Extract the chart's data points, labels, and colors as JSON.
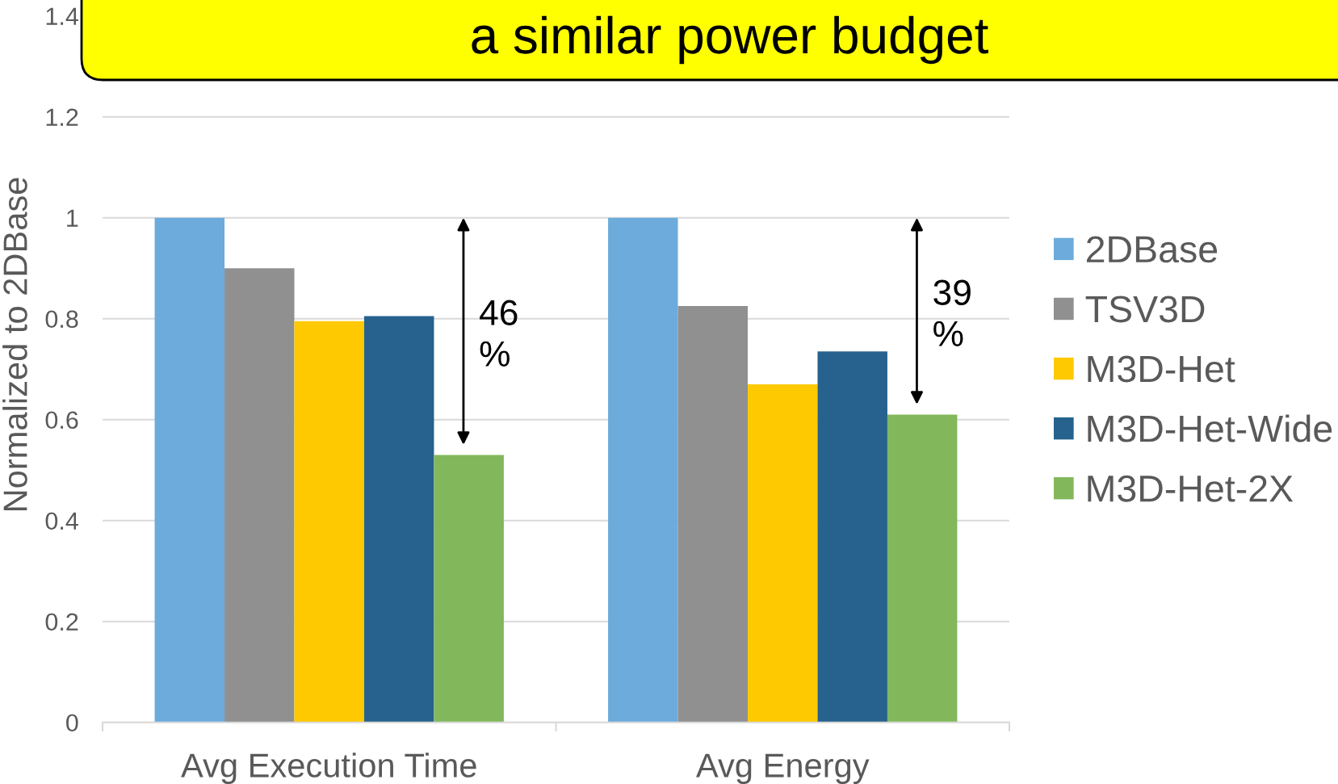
{
  "chart_data": {
    "type": "bar",
    "title": "a similar power budget",
    "ylabel": "Normalized to 2DBase",
    "categories": [
      "Avg Execution Time",
      "Avg Energy"
    ],
    "series": [
      {
        "name": "2DBase",
        "color": "#6cabdc",
        "values": [
          1,
          1
        ]
      },
      {
        "name": "TSV3D",
        "color": "#909090",
        "values": [
          0.9,
          0.825
        ]
      },
      {
        "name": "M3D-Het",
        "color": "#ffc901",
        "values": [
          0.795,
          0.67
        ]
      },
      {
        "name": "M3D-Het-Wide",
        "color": "#26628d",
        "values": [
          0.805,
          0.735
        ]
      },
      {
        "name": "M3D-Het-2X",
        "color": "#82b85b",
        "values": [
          0.53,
          0.61
        ]
      }
    ],
    "ylim": [
      0,
      1.4
    ],
    "yticks": [
      0,
      0.2,
      0.4,
      0.6,
      0.8,
      1,
      1.2,
      1.4
    ],
    "grid": "y",
    "legend": "right",
    "annotations": [
      "46\n%",
      "39\n%"
    ]
  }
}
